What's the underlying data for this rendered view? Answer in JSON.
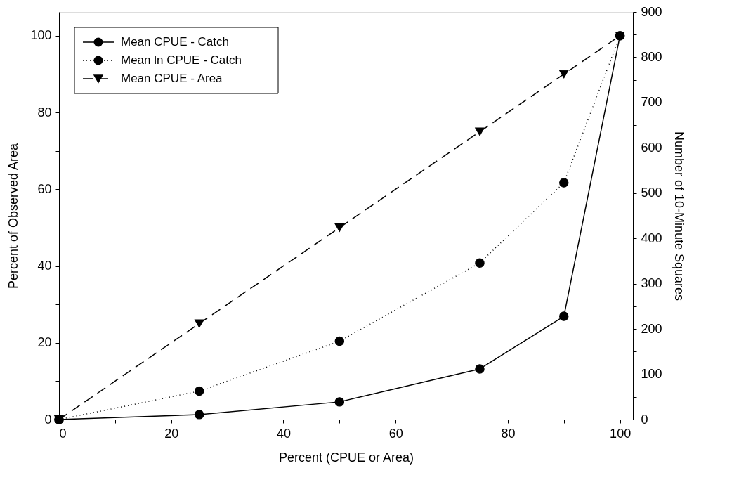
{
  "chart_data": {
    "type": "line",
    "xlabel": "Percent (CPUE or Area)",
    "ylabel": "Percent of Observed Area",
    "y2label": "Number of 10-Minute Squares",
    "x": [
      0,
      25,
      50,
      75,
      90,
      100
    ],
    "series": [
      {
        "name": "Mean CPUE - Catch",
        "color": "#000000",
        "marker": "circle",
        "line_style": "solid",
        "values": [
          0,
          1.3,
          4.6,
          13.2,
          26.9,
          100
        ]
      },
      {
        "name": "Mean ln CPUE - Catch",
        "color": "#000000",
        "marker": "circle",
        "line_style": "dotted",
        "values": [
          0,
          7.4,
          20.4,
          40.8,
          61.7,
          100
        ]
      },
      {
        "name": "Mean CPUE - Area",
        "color": "#000000",
        "marker": "triangle",
        "line_style": "dashed",
        "values": [
          0,
          25,
          50,
          75,
          90,
          100
        ]
      }
    ],
    "xlim": [
      0,
      102.3
    ],
    "ylim": [
      0,
      106.2
    ],
    "y2lim": [
      0,
      900
    ],
    "xticks": [
      0,
      {
        "value": 10,
        "label": null
      },
      20,
      {
        "value": 30,
        "label": null
      },
      40,
      {
        "value": 50,
        "label": null
      },
      60,
      {
        "value": 70,
        "label": null
      },
      80,
      {
        "value": 90,
        "label": null
      },
      100
    ],
    "yticks": [
      0,
      {
        "value": 10,
        "label": null
      },
      20,
      {
        "value": 30,
        "label": null
      },
      40,
      {
        "value": 50,
        "label": null
      },
      60,
      {
        "value": 70,
        "label": null
      },
      80,
      {
        "value": 90,
        "label": null
      },
      100
    ],
    "y2ticks": [
      0,
      {
        "value": 50,
        "label": null
      },
      100,
      {
        "value": 150,
        "label": null
      },
      200,
      {
        "value": 250,
        "label": null
      },
      300,
      {
        "value": 350,
        "label": null
      },
      400,
      {
        "value": 450,
        "label": null
      },
      500,
      {
        "value": 550,
        "label": null
      },
      600,
      {
        "value": 650,
        "label": null
      },
      700,
      {
        "value": 750,
        "label": null
      },
      800,
      {
        "value": 850,
        "label": null
      },
      900
    ],
    "grid": false,
    "legend": "top left"
  }
}
